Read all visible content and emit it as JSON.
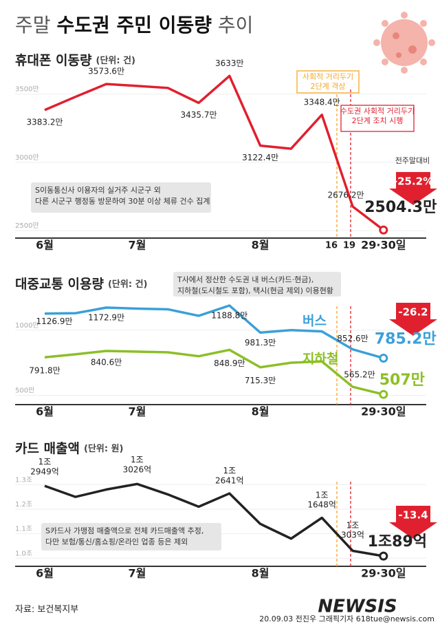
{
  "title_parts": [
    "주말",
    "수도권 주민 이동량",
    "추이"
  ],
  "chart_data": [
    {
      "type": "line",
      "title": "휴대폰 이동량",
      "unit": "(단위: 건)",
      "categories": [
        "6월",
        null,
        null,
        "7월",
        null,
        null,
        null,
        "8월",
        null,
        null,
        null,
        "29·30일"
      ],
      "values": [
        3383.2,
        3480,
        3573.6,
        3560,
        3545,
        3435.7,
        3633,
        3122.4,
        3100,
        3348.4,
        2676.2,
        2504.3
      ],
      "value_labels": [
        "3383.2만",
        null,
        "3573.6만",
        null,
        null,
        "3435.7만",
        "3633만",
        "3122.4만",
        null,
        "3348.4만",
        "2676.2만",
        "2504.3만"
      ],
      "color": "#e0202e",
      "ylim": [
        2450,
        3660
      ],
      "yticks": [
        {
          "value": 2500,
          "label": "2500만"
        },
        {
          "value": 3000,
          "label": "3000만"
        },
        {
          "value": 3500,
          "label": "3500만"
        }
      ],
      "grid": true,
      "vlines": [
        {
          "label": "16",
          "color": "#f5a623",
          "note": [
            "사회적 거리두기",
            "2단계 격상"
          ]
        },
        {
          "label": "19",
          "color": "#e0202e",
          "note": [
            "수도권 사회적 거리두기",
            "2단계 조치 시행"
          ]
        }
      ],
      "note": [
        "S이동통신사 이용자의 실거주 시군구 외",
        "다른 시군구 행정동 방문하여 30분 이상 체류 건수 집계"
      ],
      "change_caption": "전주말대비",
      "change": "-25.2%"
    },
    {
      "type": "line",
      "title": "대중교통 이용량",
      "unit": "(단위: 건)",
      "categories": [
        "6월",
        null,
        null,
        "7월",
        null,
        null,
        null,
        "8월",
        null,
        null,
        null,
        "29·30일"
      ],
      "series": [
        {
          "name": "버스",
          "color": "#3aa0d8",
          "values": [
            1126.9,
            1130,
            1172.9,
            1165,
            1160,
            1110,
            1188.8,
            981.3,
            1000,
            990,
            852.6,
            785.2
          ],
          "value_labels": [
            "1126.9만",
            null,
            "1172.9만",
            null,
            null,
            null,
            "1188.8만",
            "981.3만",
            null,
            null,
            "852.6만",
            "785.2만"
          ]
        },
        {
          "name": "지하철",
          "color": "#8cbf26",
          "values": [
            791.8,
            815,
            840.6,
            835,
            830,
            800,
            848.9,
            715.3,
            750,
            760,
            565.2,
            507
          ],
          "value_labels": [
            "791.8만",
            null,
            "840.6만",
            null,
            null,
            null,
            "848.9만",
            "715.3만",
            null,
            null,
            "565.2만",
            "507만"
          ]
        }
      ],
      "ylim": [
        450,
        1210
      ],
      "yticks": [
        {
          "value": 500,
          "label": "500만"
        },
        {
          "value": 1000,
          "label": "1000만"
        }
      ],
      "grid": true,
      "vlines": [
        {
          "color": "#f5a623"
        },
        {
          "color": "#e0202e"
        }
      ],
      "note": [
        "T사에서 정산한 수도권 내 버스(카드·현금),",
        "지하철(도시철도 포함), 택시(현금 제외) 이용현황"
      ],
      "change": "-26.2"
    },
    {
      "type": "line",
      "title": "카드 매출액",
      "unit": "(단위: 원)",
      "categories": [
        "6월",
        null,
        null,
        "7월",
        null,
        null,
        null,
        "8월",
        null,
        null,
        null,
        "29·30일"
      ],
      "values": [
        1.2949,
        1.25,
        1.28,
        1.3026,
        1.26,
        1.21,
        1.2641,
        1.14,
        1.08,
        1.1648,
        1.0303,
        1.0089
      ],
      "value_labels": [
        "1조\n2949억",
        null,
        null,
        "1조\n3026억",
        null,
        null,
        "1조\n2641억",
        null,
        null,
        "1조\n1648억",
        "1조\n303억",
        "1조89억"
      ],
      "color": "#222222",
      "ylim": [
        0.97,
        1.34
      ],
      "yticks": [
        {
          "value": 1.0,
          "label": "1.0조"
        },
        {
          "value": 1.1,
          "label": "1.1조"
        },
        {
          "value": 1.2,
          "label": "1.2조"
        },
        {
          "value": 1.3,
          "label": "1.3조"
        }
      ],
      "grid": true,
      "vlines": [
        {
          "color": "#f5a623"
        },
        {
          "color": "#e0202e"
        }
      ],
      "note": [
        "S카드사 가맹점 매출액으로 전체 카드매출액 추정,",
        "다만 보험/통신/홈쇼핑/온라인 업종 등은 제외"
      ],
      "change": "-13.4"
    }
  ],
  "source": "자료: 보건복지부",
  "credit": "20.09.03 전진우 그래픽기자 618tue@newsis.com",
  "watermark": "NEWSIS"
}
